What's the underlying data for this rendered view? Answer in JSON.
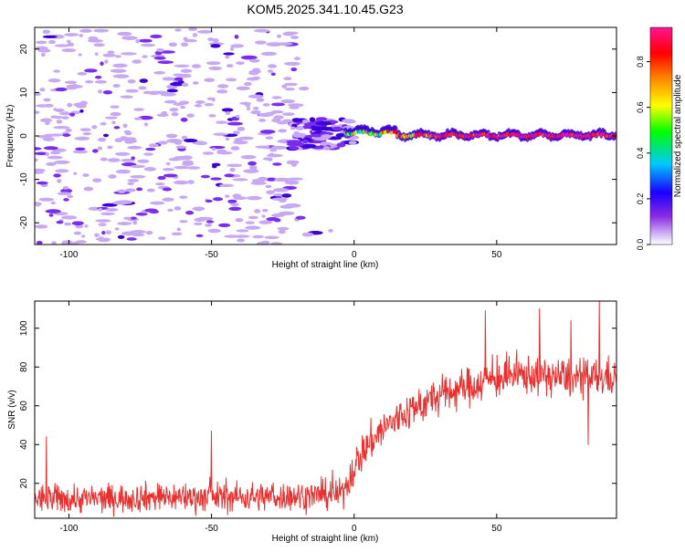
{
  "title": "KOM5.2025.341.10.45.G23",
  "colors": {
    "line": "#e8302e",
    "cold_speckle": "#c7a8f2",
    "warm_speckle": "#7a2cf0",
    "hot_speckle": "#3b00d8",
    "axis": "#000000"
  },
  "chart_data": [
    {
      "type": "heatmap",
      "name": "spectrogram",
      "xlabel": "Height of straight line (km)",
      "ylabel": "Frequency (Hz)",
      "xlim": [
        -112,
        92
      ],
      "ylim": [
        -25,
        25
      ],
      "x_ticks": [
        -100,
        -50,
        0,
        50
      ],
      "y_ticks": [
        -20,
        -10,
        0,
        10,
        20
      ],
      "colorbar": {
        "label": "Normalized spectral amplitude",
        "range": [
          0,
          0.95
        ],
        "ticks": [
          0.0,
          0.2,
          0.4,
          0.6,
          0.8
        ],
        "colormap": [
          "#ffffff",
          "#d8c2f7",
          "#8a2be2",
          "#1a00ff",
          "#00c8ff",
          "#00ff00",
          "#ffff00",
          "#ff8000",
          "#ff0000",
          "#ff1493"
        ]
      },
      "features": {
        "noise_region_x": [
          -112,
          -20
        ],
        "noise_amplitude": [
          0.02,
          0.15
        ],
        "transition_blob_x": [
          -22,
          0
        ],
        "transition_blob_freq": [
          -3,
          4
        ],
        "transition_blob_amplitude": 0.15,
        "signal_start_km": 0,
        "signal_freq_hz": 0,
        "signal_width_hz": 2,
        "signal_amplitude_range": [
          0.2,
          0.95
        ]
      }
    },
    {
      "type": "line",
      "name": "snr",
      "xlabel": "Height of straight line (km)",
      "ylabel": "SNR (v/v)",
      "xlim": [
        -112,
        92
      ],
      "ylim": [
        2,
        114
      ],
      "x_ticks": [
        -100,
        -50,
        0,
        50
      ],
      "y_ticks": [
        20,
        40,
        60,
        80,
        100
      ],
      "series": [
        {
          "name": "SNR",
          "trend_x": [
            -112,
            -90,
            -70,
            -50,
            -30,
            -10,
            -4,
            -1,
            2,
            5,
            10,
            20,
            30,
            40,
            50,
            60,
            70,
            80,
            92
          ],
          "trend_y": [
            12,
            12,
            13,
            13,
            13,
            14,
            15,
            25,
            34,
            40,
            48,
            58,
            65,
            70,
            74,
            76,
            75,
            74,
            75
          ],
          "noise_amplitude": 9,
          "sample_count": 1150,
          "spikes": [
            [
              -108,
              44
            ],
            [
              -50,
              47
            ],
            [
              46,
              109
            ],
            [
              65,
              110
            ],
            [
              76,
              104
            ],
            [
              86,
              114
            ],
            [
              82,
              40
            ]
          ]
        }
      ]
    }
  ]
}
